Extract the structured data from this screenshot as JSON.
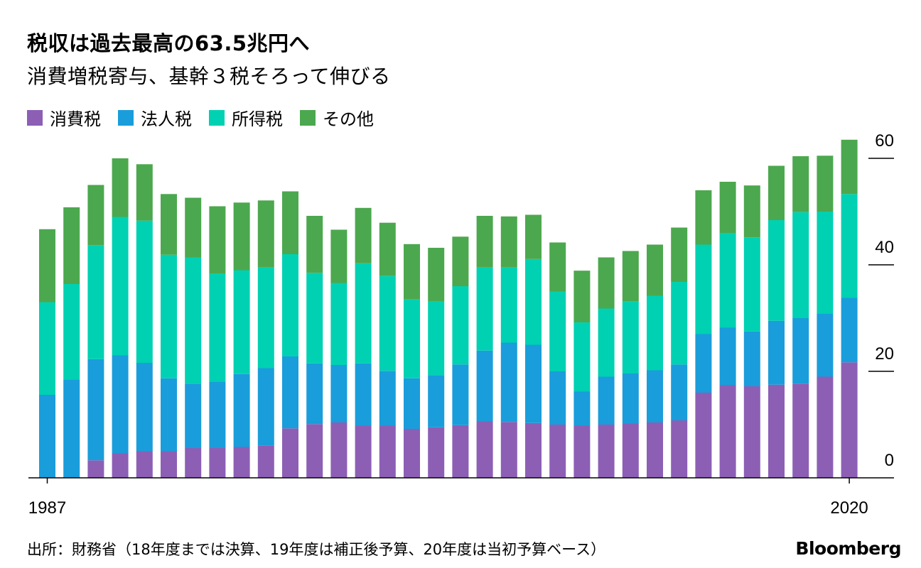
{
  "header": {
    "title": "税収は過去最高の63.5兆円へ",
    "subtitle": "消費増税寄与、基幹３税そろって伸びる"
  },
  "colors": {
    "consumption": "#8c5fb5",
    "corporate": "#1a9ddb",
    "income": "#00d1b2",
    "other": "#4ca84e"
  },
  "legend": [
    {
      "key": "consumption",
      "label": "消費税"
    },
    {
      "key": "corporate",
      "label": "法人税"
    },
    {
      "key": "income",
      "label": "所得税"
    },
    {
      "key": "other",
      "label": "その他"
    }
  ],
  "footer": {
    "source": "出所：財務省（18年度までは決算、19年度は補正後予算、20年度は当初予算ベース）",
    "logo": "Bloomberg"
  },
  "chart_data": {
    "type": "bar",
    "stacked": true,
    "title": "税収は過去最高の63.5兆円へ",
    "subtitle": "消費増税寄与、基幹３税そろって伸びる",
    "x_tick_labels": [
      "1987",
      "2020"
    ],
    "categories": [
      "1987",
      "1988",
      "1989",
      "1990",
      "1991",
      "1992",
      "1993",
      "1994",
      "1995",
      "1996",
      "1997",
      "1998",
      "1999",
      "2000",
      "2001",
      "2002",
      "2003",
      "2004",
      "2005",
      "2006",
      "2007",
      "2008",
      "2009",
      "2010",
      "2011",
      "2012",
      "2013",
      "2014",
      "2015",
      "2016",
      "2017",
      "2018",
      "2019",
      "2020"
    ],
    "ylim": [
      0,
      63.5
    ],
    "y_ticks": [
      0,
      20,
      40,
      60
    ],
    "legend_position": "top-left",
    "series": [
      {
        "name": "消費税",
        "key": "consumption",
        "values": [
          0,
          0,
          3.3,
          4.6,
          5.0,
          5.0,
          5.6,
          5.6,
          5.8,
          6.1,
          9.3,
          10.1,
          10.4,
          9.8,
          9.8,
          9.2,
          9.5,
          9.9,
          10.6,
          10.5,
          10.3,
          10.0,
          9.8,
          10.0,
          10.2,
          10.4,
          10.8,
          16.0,
          17.4,
          17.2,
          17.5,
          17.7,
          19.0,
          21.7
        ]
      },
      {
        "name": "法人税",
        "key": "corporate",
        "values": [
          15.6,
          18.4,
          19.0,
          18.4,
          16.6,
          13.7,
          12.1,
          12.4,
          13.7,
          14.5,
          13.5,
          11.4,
          10.8,
          11.7,
          10.3,
          9.5,
          9.8,
          11.4,
          13.3,
          14.9,
          14.7,
          10.0,
          6.4,
          9.0,
          9.4,
          9.8,
          10.5,
          11.0,
          10.8,
          10.3,
          12.0,
          12.3,
          11.8,
          12.1
        ]
      },
      {
        "name": "所得税",
        "key": "income",
        "values": [
          17.4,
          18.0,
          21.4,
          26.0,
          26.7,
          23.2,
          23.7,
          20.4,
          19.5,
          18.9,
          19.2,
          17.0,
          15.4,
          18.8,
          17.8,
          14.8,
          13.9,
          14.7,
          15.6,
          14.1,
          16.1,
          15.0,
          13.0,
          12.8,
          13.5,
          14.0,
          15.5,
          16.8,
          17.8,
          17.6,
          18.9,
          19.9,
          19.2,
          19.5
        ]
      },
      {
        "name": "その他",
        "key": "other",
        "values": [
          13.7,
          14.4,
          11.3,
          11.0,
          10.6,
          11.4,
          11.2,
          12.6,
          12.7,
          12.6,
          11.8,
          10.7,
          10.0,
          10.4,
          10.0,
          10.4,
          10.0,
          9.3,
          9.7,
          9.6,
          8.3,
          9.2,
          9.7,
          9.6,
          9.5,
          9.6,
          10.2,
          10.2,
          9.6,
          9.8,
          10.2,
          10.5,
          10.5,
          10.2
        ]
      }
    ]
  }
}
